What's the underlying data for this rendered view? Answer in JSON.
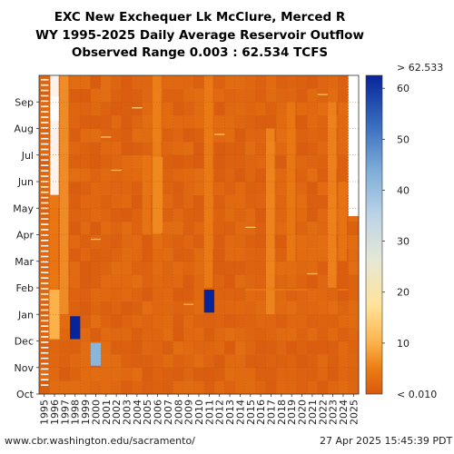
{
  "header": {
    "line1": "EXC New Exchequer Lk McClure, Merced R",
    "line2": "WY 1995-2025 Daily Average Reservoir Outflow",
    "line3": "Observed Range 0.003 : 62.534 TCFS"
  },
  "footer": {
    "url": "www.cbr.washington.edu/sacramento/",
    "timestamp": "27 Apr 2025 15:45:39 PDT"
  },
  "chart_data": {
    "type": "heatmap",
    "x": [
      "1995",
      "1996",
      "1997",
      "1998",
      "1999",
      "2000",
      "2001",
      "2002",
      "2003",
      "2004",
      "2005",
      "2006",
      "2007",
      "2008",
      "2009",
      "2010",
      "2011",
      "2012",
      "2013",
      "2014",
      "2015",
      "2016",
      "2017",
      "2018",
      "2019",
      "2020",
      "2021",
      "2022",
      "2023",
      "2024",
      "2025"
    ],
    "months": [
      "Oct",
      "Nov",
      "Dec",
      "Jan",
      "Feb",
      "Mar",
      "Apr",
      "May",
      "Jun",
      "Jul",
      "Aug",
      "Sep"
    ],
    "colorbar": {
      "ticks": [
        10,
        20,
        30,
        40,
        50,
        60
      ],
      "min_label": "< 0.010",
      "max_label": "> 62.533",
      "range": [
        0,
        62.534
      ]
    },
    "cells": [
      {
        "wy": "1998",
        "from": "Dec",
        "to": "Jan",
        "value": 62.534
      },
      {
        "wy": "2011",
        "from": "Jan",
        "to": "Feb",
        "value": 62.534
      },
      {
        "wy": "2000",
        "from": "Nov",
        "to": "Dec",
        "value": 42
      },
      {
        "wy": "1996",
        "from": "Dec",
        "to": "Feb",
        "value": 10
      },
      {
        "wy": "2006",
        "from": "Apr",
        "to": "Jul",
        "value": 6
      }
    ],
    "missing": {
      "wy1995": "2025 WY 2025 data ends April",
      "wy1995_note": "WY 1995 partially missing"
    }
  }
}
